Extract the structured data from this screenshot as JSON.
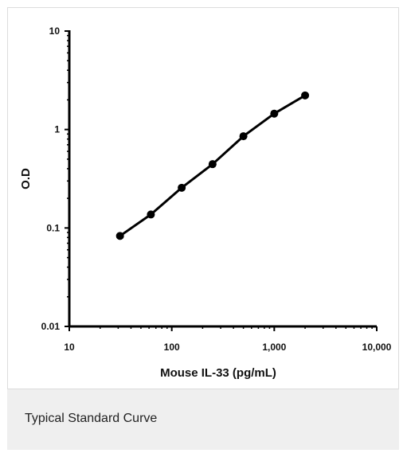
{
  "caption": "Typical Standard Curve",
  "chart_data": {
    "type": "line",
    "title": "",
    "xlabel": "Mouse IL-33 (pg/mL)",
    "ylabel": "O.D",
    "x_scale": "log",
    "y_scale": "log",
    "xlim": [
      10,
      10000
    ],
    "ylim": [
      0.01,
      10
    ],
    "x_ticks": [
      10,
      100,
      1000,
      10000
    ],
    "x_tick_labels": [
      "10",
      "100",
      "1,000",
      "10,000"
    ],
    "y_ticks": [
      0.01,
      0.1,
      1,
      10
    ],
    "y_tick_labels": [
      "0.01",
      "0.1",
      "1",
      "10"
    ],
    "grid": false,
    "series": [
      {
        "x": [
          31.25,
          62.5,
          125,
          250,
          500,
          1000,
          2000
        ],
        "y": [
          0.083,
          0.137,
          0.256,
          0.445,
          0.855,
          1.45,
          2.22
        ]
      }
    ],
    "colors": {
      "line": "#000000",
      "axis": "#000000"
    }
  }
}
